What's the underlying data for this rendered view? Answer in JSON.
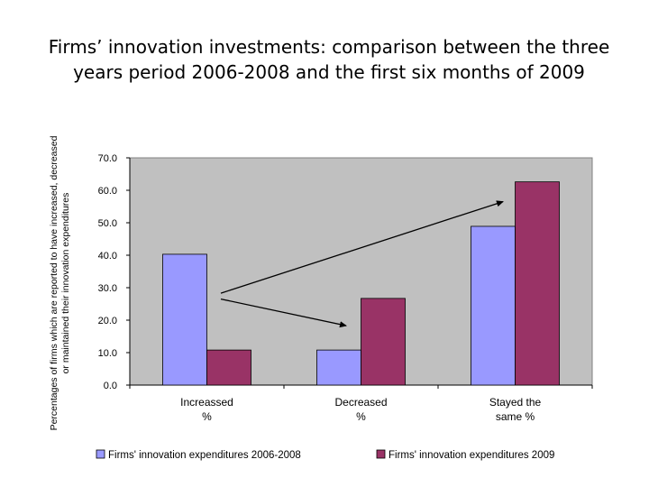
{
  "title": "Firms’ innovation investments: comparison between the three years period 2006-2008 and the first six months of 2009",
  "chart_data": {
    "type": "bar",
    "categories": [
      "Increassed\n%",
      "Decreased\n%",
      "Stayed the\nsame %"
    ],
    "series": [
      {
        "name": "Firms' innovation expenditures 2006-2008",
        "color": "#9999ff",
        "values": [
          40.3,
          10.8,
          48.9
        ]
      },
      {
        "name": "Firms' innovation expenditures 2009",
        "color": "#993366",
        "values": [
          10.8,
          26.7,
          62.6
        ]
      }
    ],
    "ylabel": "Percentages of firms which are reported to have increased, decreased or maintained their innovation expenditures",
    "ylim": [
      0,
      70
    ],
    "yticks": [
      "0.0",
      "10.0",
      "20.0",
      "30.0",
      "40.0",
      "50.0",
      "60.0",
      "70.0"
    ],
    "plot_background": "#c0c0c0",
    "grid": false,
    "legend": "bottom",
    "annotations": [
      "arrow from Increassed toward Stayed the same",
      "arrow from Increassed toward Decreased"
    ]
  }
}
